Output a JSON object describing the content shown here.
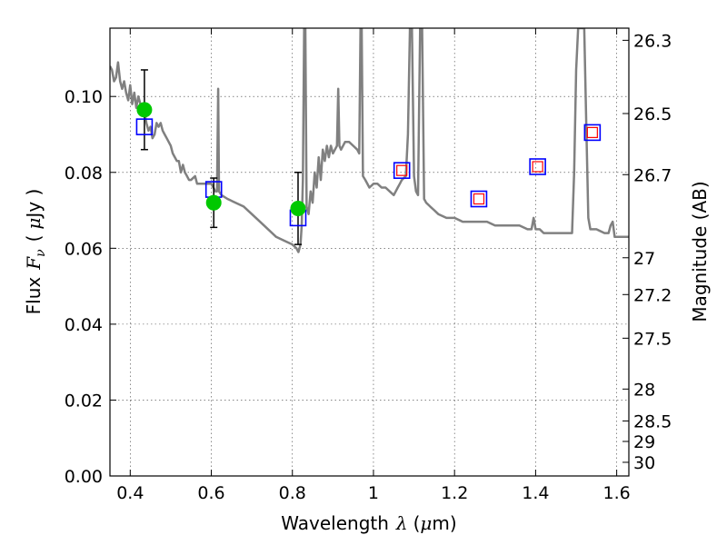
{
  "chart_data": {
    "type": "scatter",
    "title": "",
    "xlabel": "Wavelength",
    "xlabel_symbol": "λ",
    "xlabel_unit_open": "(",
    "xlabel_unit_mu": "μ",
    "xlabel_unit_rest": "m)",
    "ylabel_left": "Flux",
    "ylabel_symbol": "F",
    "ylabel_subscript": "ν",
    "ylabel_unit_open": "(",
    "ylabel_unit_mu": "μ",
    "ylabel_unit_rest": "Jy )",
    "ylabel_right": "Magnitude (AB)",
    "xlim": [
      0.35,
      1.63
    ],
    "ylim": [
      0,
      0.118
    ],
    "grid": true,
    "xticks": [
      {
        "value": 0.4,
        "label": "0.4"
      },
      {
        "value": 0.6,
        "label": "0.6"
      },
      {
        "value": 0.8,
        "label": "0.8"
      },
      {
        "value": 1.0,
        "label": "1"
      },
      {
        "value": 1.2,
        "label": "1.2"
      },
      {
        "value": 1.4,
        "label": "1.4"
      },
      {
        "value": 1.6,
        "label": "1.6"
      }
    ],
    "yticks": [
      {
        "value": 0.0,
        "label": "0.00"
      },
      {
        "value": 0.02,
        "label": "0.02"
      },
      {
        "value": 0.04,
        "label": "0.04"
      },
      {
        "value": 0.06,
        "label": "0.06"
      },
      {
        "value": 0.08,
        "label": "0.08"
      },
      {
        "value": 0.1,
        "label": "0.10"
      }
    ],
    "right_ticks": [
      {
        "flux": 0.1148,
        "label": "26.3"
      },
      {
        "flux": 0.0955,
        "label": "26.5"
      },
      {
        "flux": 0.0794,
        "label": "26.7"
      },
      {
        "flux": 0.0575,
        "label": "27"
      },
      {
        "flux": 0.0478,
        "label": "27.2"
      },
      {
        "flux": 0.0363,
        "label": "27.5"
      },
      {
        "flux": 0.0229,
        "label": "28"
      },
      {
        "flux": 0.0145,
        "label": "28.5"
      },
      {
        "flux": 0.0091,
        "label": "29"
      },
      {
        "flux": 0.0036,
        "label": "30"
      }
    ],
    "sed_model": {
      "color": "#808080",
      "points": [
        [
          0.35,
          0.108
        ],
        [
          0.355,
          0.107
        ],
        [
          0.36,
          0.104
        ],
        [
          0.365,
          0.105
        ],
        [
          0.37,
          0.109
        ],
        [
          0.375,
          0.104
        ],
        [
          0.38,
          0.102
        ],
        [
          0.385,
          0.104
        ],
        [
          0.39,
          0.101
        ],
        [
          0.395,
          0.099
        ],
        [
          0.4,
          0.103
        ],
        [
          0.405,
          0.098
        ],
        [
          0.41,
          0.101
        ],
        [
          0.415,
          0.097
        ],
        [
          0.42,
          0.1
        ],
        [
          0.425,
          0.098
        ],
        [
          0.43,
          0.095
        ],
        [
          0.435,
          0.096
        ],
        [
          0.44,
          0.093
        ],
        [
          0.445,
          0.091
        ],
        [
          0.45,
          0.092
        ],
        [
          0.455,
          0.089
        ],
        [
          0.46,
          0.09
        ],
        [
          0.465,
          0.093
        ],
        [
          0.47,
          0.092
        ],
        [
          0.475,
          0.093
        ],
        [
          0.48,
          0.091
        ],
        [
          0.485,
          0.09
        ],
        [
          0.49,
          0.089
        ],
        [
          0.5,
          0.087
        ],
        [
          0.505,
          0.085
        ],
        [
          0.51,
          0.084
        ],
        [
          0.515,
          0.083
        ],
        [
          0.52,
          0.083
        ],
        [
          0.525,
          0.08
        ],
        [
          0.53,
          0.082
        ],
        [
          0.535,
          0.08
        ],
        [
          0.54,
          0.079
        ],
        [
          0.545,
          0.078
        ],
        [
          0.55,
          0.078
        ],
        [
          0.56,
          0.079
        ],
        [
          0.565,
          0.077
        ],
        [
          0.57,
          0.077
        ],
        [
          0.58,
          0.077
        ],
        [
          0.59,
          0.077
        ],
        [
          0.6,
          0.077
        ],
        [
          0.605,
          0.076
        ],
        [
          0.61,
          0.075
        ],
        [
          0.614,
          0.075
        ],
        [
          0.617,
          0.102
        ],
        [
          0.619,
          0.075
        ],
        [
          0.625,
          0.074
        ],
        [
          0.64,
          0.073
        ],
        [
          0.66,
          0.072
        ],
        [
          0.68,
          0.071
        ],
        [
          0.7,
          0.069
        ],
        [
          0.72,
          0.067
        ],
        [
          0.74,
          0.065
        ],
        [
          0.76,
          0.063
        ],
        [
          0.78,
          0.062
        ],
        [
          0.8,
          0.061
        ],
        [
          0.81,
          0.06
        ],
        [
          0.815,
          0.059
        ],
        [
          0.82,
          0.061
        ],
        [
          0.823,
          0.066
        ],
        [
          0.826,
          0.078
        ],
        [
          0.829,
          0.118
        ],
        [
          0.832,
          0.118
        ],
        [
          0.835,
          0.071
        ],
        [
          0.84,
          0.069
        ],
        [
          0.845,
          0.075
        ],
        [
          0.85,
          0.072
        ],
        [
          0.855,
          0.08
        ],
        [
          0.86,
          0.076
        ],
        [
          0.865,
          0.084
        ],
        [
          0.87,
          0.078
        ],
        [
          0.875,
          0.086
        ],
        [
          0.88,
          0.083
        ],
        [
          0.885,
          0.087
        ],
        [
          0.89,
          0.084
        ],
        [
          0.895,
          0.087
        ],
        [
          0.9,
          0.085
        ],
        [
          0.905,
          0.086
        ],
        [
          0.91,
          0.087
        ],
        [
          0.913,
          0.102
        ],
        [
          0.916,
          0.087
        ],
        [
          0.92,
          0.086
        ],
        [
          0.93,
          0.088
        ],
        [
          0.94,
          0.088
        ],
        [
          0.95,
          0.087
        ],
        [
          0.96,
          0.086
        ],
        [
          0.965,
          0.085
        ],
        [
          0.968,
          0.118
        ],
        [
          0.971,
          0.118
        ],
        [
          0.974,
          0.079
        ],
        [
          0.98,
          0.078
        ],
        [
          0.99,
          0.076
        ],
        [
          1.0,
          0.077
        ],
        [
          1.01,
          0.077
        ],
        [
          1.02,
          0.076
        ],
        [
          1.03,
          0.076
        ],
        [
          1.04,
          0.075
        ],
        [
          1.05,
          0.074
        ],
        [
          1.06,
          0.076
        ],
        [
          1.065,
          0.077
        ],
        [
          1.07,
          0.078
        ],
        [
          1.08,
          0.079
        ],
        [
          1.085,
          0.09
        ],
        [
          1.09,
          0.118
        ],
        [
          1.095,
          0.118
        ],
        [
          1.1,
          0.079
        ],
        [
          1.105,
          0.075
        ],
        [
          1.11,
          0.074
        ],
        [
          1.115,
          0.118
        ],
        [
          1.12,
          0.118
        ],
        [
          1.125,
          0.073
        ],
        [
          1.13,
          0.072
        ],
        [
          1.14,
          0.071
        ],
        [
          1.15,
          0.07
        ],
        [
          1.16,
          0.069
        ],
        [
          1.18,
          0.068
        ],
        [
          1.2,
          0.068
        ],
        [
          1.22,
          0.067
        ],
        [
          1.24,
          0.067
        ],
        [
          1.26,
          0.067
        ],
        [
          1.28,
          0.067
        ],
        [
          1.3,
          0.066
        ],
        [
          1.32,
          0.066
        ],
        [
          1.34,
          0.066
        ],
        [
          1.36,
          0.066
        ],
        [
          1.38,
          0.065
        ],
        [
          1.39,
          0.065
        ],
        [
          1.395,
          0.068
        ],
        [
          1.4,
          0.065
        ],
        [
          1.41,
          0.065
        ],
        [
          1.42,
          0.064
        ],
        [
          1.44,
          0.064
        ],
        [
          1.46,
          0.064
        ],
        [
          1.48,
          0.064
        ],
        [
          1.49,
          0.064
        ],
        [
          1.495,
          0.08
        ],
        [
          1.5,
          0.107
        ],
        [
          1.505,
          0.118
        ],
        [
          1.51,
          0.118
        ],
        [
          1.52,
          0.118
        ],
        [
          1.525,
          0.092
        ],
        [
          1.53,
          0.068
        ],
        [
          1.535,
          0.065
        ],
        [
          1.55,
          0.065
        ],
        [
          1.57,
          0.064
        ],
        [
          1.58,
          0.064
        ],
        [
          1.585,
          0.066
        ],
        [
          1.59,
          0.067
        ],
        [
          1.595,
          0.063
        ],
        [
          1.6,
          0.063
        ],
        [
          1.63,
          0.063
        ]
      ]
    },
    "model_photometry": {
      "style": "blue open square",
      "color": "#0000ff",
      "points": [
        {
          "x": 0.435,
          "y": 0.092
        },
        {
          "x": 0.606,
          "y": 0.0755
        },
        {
          "x": 0.814,
          "y": 0.068
        },
        {
          "x": 1.07,
          "y": 0.0805
        },
        {
          "x": 1.26,
          "y": 0.073
        },
        {
          "x": 1.405,
          "y": 0.0815
        },
        {
          "x": 1.54,
          "y": 0.0905
        }
      ]
    },
    "observed_upper_limits": {
      "style": "red open square",
      "color": "#ff0000",
      "points": [
        {
          "x": 1.07,
          "y": 0.0805
        },
        {
          "x": 1.26,
          "y": 0.073
        },
        {
          "x": 1.405,
          "y": 0.0815
        },
        {
          "x": 1.54,
          "y": 0.0905
        }
      ]
    },
    "observed_detections": {
      "style": "green filled circle with black error bars",
      "color": "#00c800",
      "error_color": "#000000",
      "points": [
        {
          "x": 0.435,
          "y": 0.0965,
          "ylow": 0.086,
          "yhigh": 0.107
        },
        {
          "x": 0.606,
          "y": 0.072,
          "ylow": 0.0655,
          "yhigh": 0.0785
        },
        {
          "x": 0.814,
          "y": 0.0705,
          "ylow": 0.061,
          "yhigh": 0.08
        }
      ]
    }
  }
}
